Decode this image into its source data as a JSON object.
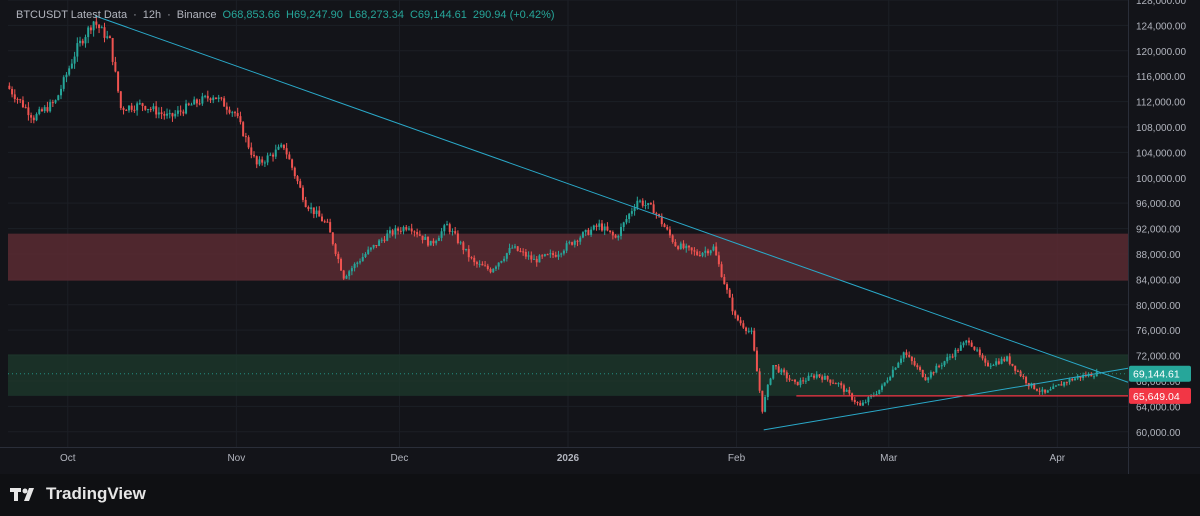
{
  "header": {
    "symbol": "BTCUSDT Latest Data",
    "interval": "12h",
    "exchange": "Binance",
    "open": "O68,853.66",
    "high": "H69,247.90",
    "low": "L68,273.34",
    "close": "C69,144.61",
    "change": "290.94 (+0.42%)"
  },
  "footer": {
    "brand": "TradingView"
  },
  "colors": {
    "bg": "#131419",
    "up": "#26a69a",
    "down": "#ef5350",
    "trendline": "#2aa9c9",
    "support_line": "#f23645",
    "resistance_zone": "#5a2a33",
    "support_zone": "#1e3a2c"
  },
  "chart_data": {
    "type": "candlestick",
    "interval": "12h",
    "ylim": [
      57600,
      128000
    ],
    "y_ticks": [
      "60,000.00",
      "64,000.00",
      "68,000.00",
      "72,000.00",
      "76,000.00",
      "80,000.00",
      "84,000.00",
      "88,000.00",
      "92,000.00",
      "96,000.00",
      "100,000.00",
      "104,000.00",
      "108,000.00",
      "112,000.00",
      "116,000.00",
      "120,000.00",
      "124,000.00",
      "128,000.00"
    ],
    "x_ticks": [
      {
        "label": "Oct",
        "date": "2025-10-01"
      },
      {
        "label": "Nov",
        "date": "2025-11-01"
      },
      {
        "label": "Dec",
        "date": "2025-12-01"
      },
      {
        "label": "2026",
        "date": "2026-01-01",
        "bold": true
      },
      {
        "label": "Feb",
        "date": "2026-02-01"
      },
      {
        "label": "Mar",
        "date": "2026-03-01"
      },
      {
        "label": "Apr",
        "date": "2026-04-01"
      }
    ],
    "x_range": [
      "2025-09-20",
      "2026-04-14"
    ],
    "price_path": [
      [
        "2025-09-20",
        114500
      ],
      [
        "2025-09-25",
        109500
      ],
      [
        "2025-09-29",
        112000
      ],
      [
        "2025-10-03",
        120500
      ],
      [
        "2025-10-06",
        124700
      ],
      [
        "2025-10-09",
        121500
      ],
      [
        "2025-10-11",
        111000
      ],
      [
        "2025-10-15",
        111500
      ],
      [
        "2025-10-20",
        109500
      ],
      [
        "2025-10-24",
        111500
      ],
      [
        "2025-10-28",
        113000
      ],
      [
        "2025-11-01",
        110200
      ],
      [
        "2025-11-05",
        102000
      ],
      [
        "2025-11-10",
        105000
      ],
      [
        "2025-11-14",
        96000
      ],
      [
        "2025-11-18",
        92500
      ],
      [
        "2025-11-21",
        84500
      ],
      [
        "2025-11-25",
        88000
      ],
      [
        "2025-11-29",
        91000
      ],
      [
        "2025-12-03",
        92500
      ],
      [
        "2025-12-07",
        89500
      ],
      [
        "2025-12-10",
        92500
      ],
      [
        "2025-12-15",
        86500
      ],
      [
        "2025-12-18",
        85500
      ],
      [
        "2025-12-22",
        89000
      ],
      [
        "2025-12-26",
        87000
      ],
      [
        "2025-12-30",
        88000
      ],
      [
        "2026-01-03",
        90500
      ],
      [
        "2026-01-07",
        92500
      ],
      [
        "2026-01-10",
        90500
      ],
      [
        "2026-01-14",
        96500
      ],
      [
        "2026-01-17",
        95000
      ],
      [
        "2026-01-21",
        89500
      ],
      [
        "2026-01-25",
        88000
      ],
      [
        "2026-01-28",
        89000
      ],
      [
        "2026-02-01",
        78000
      ],
      [
        "2026-02-04",
        75500
      ],
      [
        "2026-02-06",
        63500
      ],
      [
        "2026-02-08",
        70500
      ],
      [
        "2026-02-12",
        67500
      ],
      [
        "2026-02-16",
        69000
      ],
      [
        "2026-02-20",
        67500
      ],
      [
        "2026-02-24",
        64000
      ],
      [
        "2026-02-28",
        67000
      ],
      [
        "2026-03-04",
        72500
      ],
      [
        "2026-03-08",
        68500
      ],
      [
        "2026-03-12",
        71500
      ],
      [
        "2026-03-16",
        74500
      ],
      [
        "2026-03-19",
        70500
      ],
      [
        "2026-03-23",
        71500
      ],
      [
        "2026-03-27",
        67500
      ],
      [
        "2026-03-30",
        66000
      ],
      [
        "2026-04-03",
        68000
      ],
      [
        "2026-04-06",
        68800
      ],
      [
        "2026-04-08",
        69144.61
      ]
    ],
    "zones": [
      {
        "name": "resistance",
        "from": 83800,
        "to": 91200
      },
      {
        "name": "support",
        "from": 65649.04,
        "to": 72200
      }
    ],
    "lines": [
      {
        "name": "downtrend",
        "points": [
          [
            "2025-10-06",
            125500
          ],
          [
            "2026-04-14",
            67800
          ]
        ]
      },
      {
        "name": "uptrend",
        "points": [
          [
            "2026-02-06",
            60300
          ],
          [
            "2026-04-14",
            70000
          ]
        ]
      },
      {
        "name": "support-level",
        "points": [
          [
            "2026-02-12",
            65649.04
          ],
          [
            "2026-04-14",
            65649.04
          ]
        ]
      }
    ],
    "price_labels": [
      {
        "value": 69144.61,
        "text": "69,144.61",
        "color": "#26a69a"
      },
      {
        "value": 65649.04,
        "text": "65,649.04",
        "color": "#f23645"
      }
    ]
  }
}
